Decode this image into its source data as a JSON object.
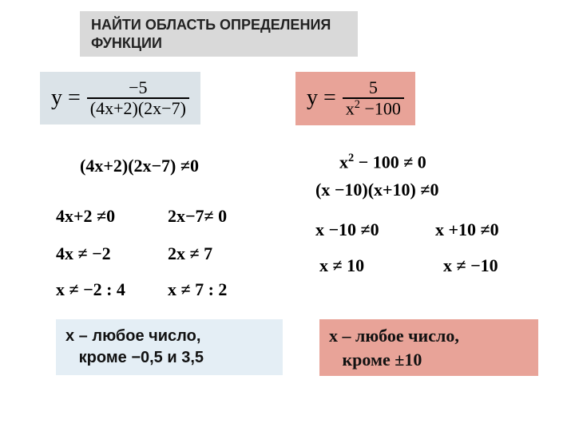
{
  "title": {
    "line1": "НАЙТИ  ОБЛАСТЬ ОПРЕДЕЛЕНИЯ",
    "line2": "ФУНКЦИИ"
  },
  "left": {
    "formula": {
      "prefix": "y =",
      "numerator": "−5",
      "denominator": "(4x+2)(2x−7)"
    },
    "step1": "(4x+2)(2x−7) ≠0",
    "colA": {
      "l1": "4x+2 ≠0",
      "l2": "4x ≠ −2",
      "l3": "x ≠ −2 : 4"
    },
    "colB": {
      "l1": "2x−7≠ 0",
      "l2": "2x ≠ 7",
      "l3": "x ≠ 7 : 2"
    },
    "answer": {
      "l1": "x – любое число,",
      "l2": "кроме −0,5 и 3,5"
    }
  },
  "right": {
    "formula": {
      "prefix": "y =",
      "numerator": "5",
      "denominator_html": "x<sup>2</sup> −100"
    },
    "step1_html": "x<sup>2</sup> − 100 ≠ 0",
    "step2": "(x −10)(x+10) ≠0",
    "colA": {
      "l1": "x −10 ≠0",
      "l2": "x ≠ 10"
    },
    "colB": {
      "l1": "x +10 ≠0",
      "l2": "x ≠ −10"
    },
    "answer": {
      "l1": "x – любое число,",
      "l2": "кроме ±10"
    }
  },
  "colors": {
    "title_bg": "#d9d9d9",
    "gray_bg": "#dbe3e8",
    "pink_bg": "#e8a398",
    "blue_bg": "#e4eef5",
    "text": "#000000"
  }
}
